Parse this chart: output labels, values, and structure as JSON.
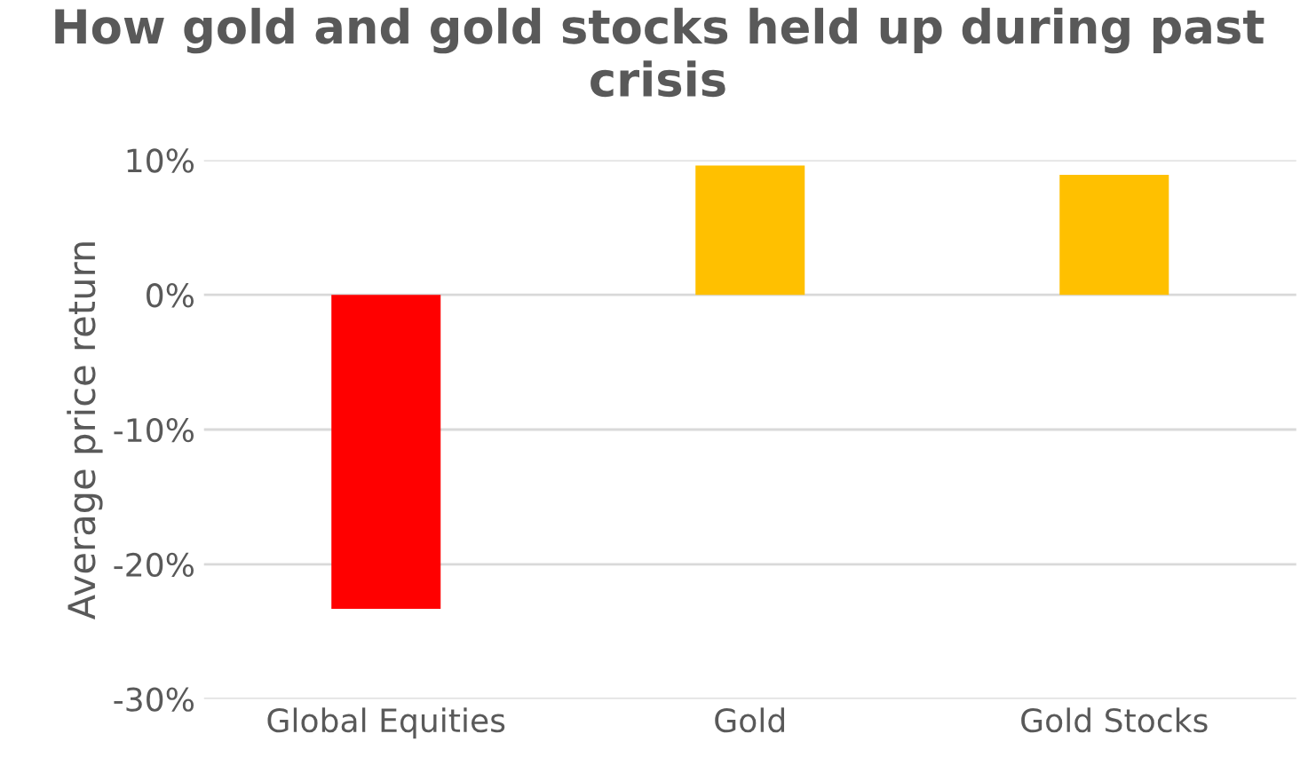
{
  "chart_data": {
    "type": "bar",
    "title": "How gold and gold stocks held up during past crisis",
    "ylabel": "Average price return",
    "categories": [
      "Global Equities",
      "Gold",
      "Gold Stocks"
    ],
    "values": [
      -23.3,
      9.6,
      8.9
    ],
    "colors": [
      "#ff0000",
      "#ffc000",
      "#ffc000"
    ],
    "ylim": [
      -30,
      10
    ],
    "yticks": [
      {
        "value": -30,
        "label": "-30%"
      },
      {
        "value": -20,
        "label": "-20%"
      },
      {
        "value": -10,
        "label": "-10%"
      },
      {
        "value": 0,
        "label": "0%"
      },
      {
        "value": 10,
        "label": "10%"
      }
    ],
    "grid": "y"
  }
}
